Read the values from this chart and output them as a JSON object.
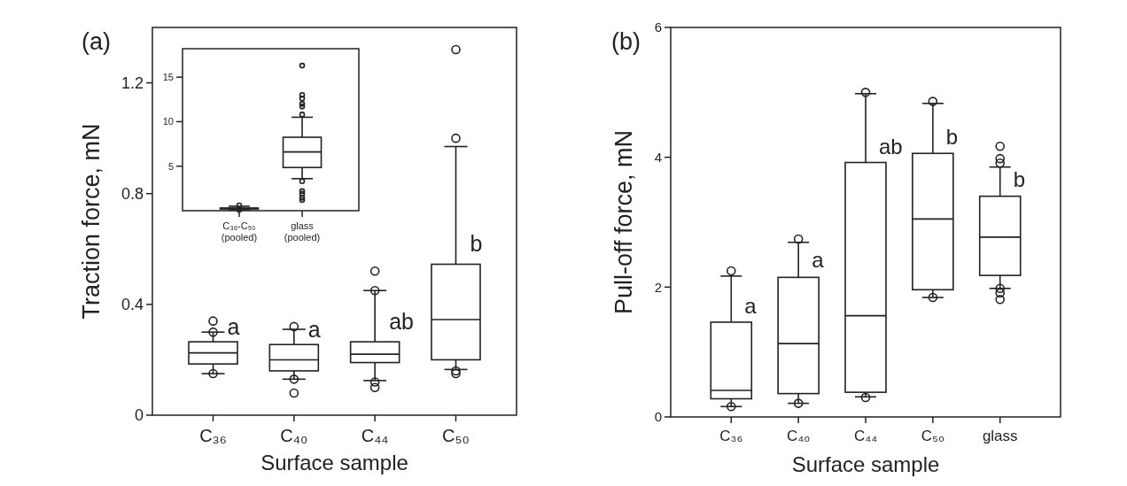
{
  "chart_data": [
    {
      "type": "box",
      "title": "(a)",
      "xlabel": "Surface sample",
      "ylabel": "Traction force, mN",
      "categories": [
        "C₃₆",
        "C₄₀",
        "C₄₄",
        "C₅₀"
      ],
      "ylim": [
        0,
        1.4
      ],
      "yticks": [
        0,
        0.4,
        0.8,
        1.2
      ],
      "grid": false,
      "boxes": [
        {
          "low": 0.15,
          "q1": 0.185,
          "median": 0.225,
          "q3": 0.265,
          "high": 0.3,
          "outliers": [
            0.34,
            0.3,
            0.15
          ]
        },
        {
          "low": 0.13,
          "q1": 0.16,
          "median": 0.2,
          "q3": 0.255,
          "high": 0.31,
          "outliers": [
            0.32,
            0.13,
            0.08
          ]
        },
        {
          "low": 0.125,
          "q1": 0.19,
          "median": 0.22,
          "q3": 0.265,
          "high": 0.45,
          "outliers": [
            0.52,
            0.45,
            0.12,
            0.1
          ]
        },
        {
          "low": 0.165,
          "q1": 0.2,
          "median": 0.345,
          "q3": 0.545,
          "high": 0.97,
          "outliers": [
            1.32,
            1.0,
            0.16,
            0.15
          ]
        }
      ],
      "annotations": [
        {
          "text": "a",
          "x": "C₃₆",
          "y": 0.29
        },
        {
          "text": "a",
          "x": "C₄₀",
          "y": 0.28
        },
        {
          "text": "ab",
          "x": "C₄₄",
          "y": 0.31
        },
        {
          "text": "b",
          "x": "C₅₀",
          "y": 0.59
        }
      ]
    },
    {
      "type": "box",
      "categories": [
        "C₃₆-C₅₀ (pooled)",
        "glass (pooled)"
      ],
      "ylim": [
        0,
        18.2
      ],
      "yticks": [
        5,
        10,
        15
      ],
      "grid": false,
      "boxes": [
        {
          "low": 0.1,
          "q1": 0.2,
          "median": 0.25,
          "q3": 0.3,
          "high": 0.5,
          "outliers": [
            0.6,
            0.1
          ]
        },
        {
          "low": 3.6,
          "q1": 4.85,
          "median": 6.6,
          "q3": 8.25,
          "high": 10.5,
          "outliers": [
            16.3,
            13.0,
            12.6,
            12.0,
            11.7,
            10.8,
            3.3,
            2.2,
            1.9,
            1.45,
            1.2
          ]
        }
      ]
    },
    {
      "type": "box",
      "title": "(b)",
      "xlabel": "Surface sample",
      "ylabel": "Pull-off force, mN",
      "categories": [
        "C₃₆",
        "C₄₀",
        "C₄₄",
        "C₅₀",
        "glass"
      ],
      "ylim": [
        0,
        6
      ],
      "yticks": [
        0,
        2,
        4,
        6
      ],
      "grid": false,
      "boxes": [
        {
          "low": 0.16,
          "q1": 0.28,
          "median": 0.41,
          "q3": 1.46,
          "high": 2.17,
          "outliers": [
            2.25,
            0.16
          ]
        },
        {
          "low": 0.21,
          "q1": 0.36,
          "median": 1.13,
          "q3": 2.15,
          "high": 2.69,
          "outliers": [
            2.74,
            0.21
          ]
        },
        {
          "low": 0.31,
          "q1": 0.38,
          "median": 1.56,
          "q3": 3.92,
          "high": 4.98,
          "outliers": [
            5.0,
            0.3
          ]
        },
        {
          "low": 1.84,
          "q1": 1.96,
          "median": 3.05,
          "q3": 4.06,
          "high": 4.83,
          "outliers": [
            4.86,
            1.84
          ]
        },
        {
          "low": 1.98,
          "q1": 2.18,
          "median": 2.77,
          "q3": 3.4,
          "high": 3.85,
          "outliers": [
            4.17,
            3.98,
            3.91,
            1.98,
            1.91,
            1.81
          ]
        }
      ],
      "annotations": [
        {
          "text": "a",
          "x": "C₃₆",
          "y": 1.6
        },
        {
          "text": "a",
          "x": "C₄₀",
          "y": 2.3
        },
        {
          "text": "ab",
          "x": "C₄₄",
          "y": 4.05
        },
        {
          "text": "b",
          "x": "C₅₀",
          "y": 4.2
        },
        {
          "text": "b",
          "x": "glass",
          "y": 3.55
        }
      ]
    }
  ]
}
